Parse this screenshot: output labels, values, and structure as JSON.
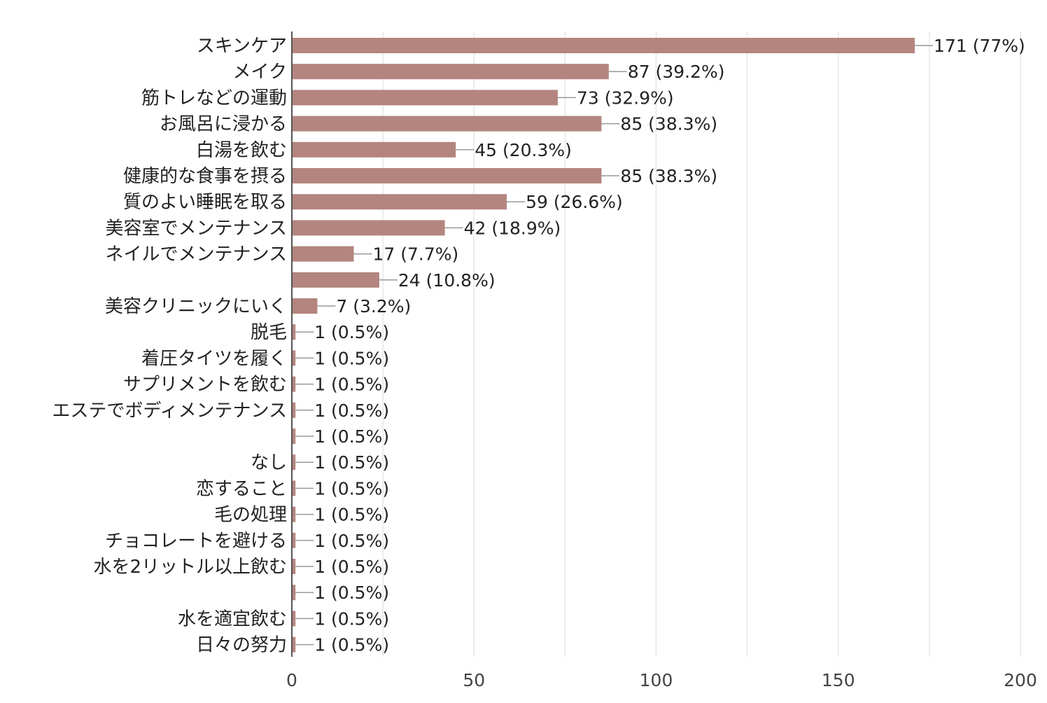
{
  "chart_data": {
    "type": "bar",
    "orientation": "horizontal",
    "categories": [
      "スキンケア",
      "メイク",
      "筋トレなどの運動",
      "お風呂に浸かる",
      "白湯を飲む",
      "健康的な食事を摂る",
      "質のよい睡眠を取る",
      "美容室でメンテナンス",
      "ネイルでメンテナンス",
      "",
      "美容クリニックにいく",
      "脱毛",
      "着圧タイツを履く",
      "サプリメントを飲む",
      "エステでボディメンテナンス",
      "",
      "なし",
      "恋すること",
      "毛の処理",
      "チョコレートを避ける",
      "水を2リットル以上飲む",
      "",
      "水を適宜飲む",
      "日々の努力"
    ],
    "values": [
      171,
      87,
      73,
      85,
      45,
      85,
      59,
      42,
      17,
      24,
      7,
      1,
      1,
      1,
      1,
      1,
      1,
      1,
      1,
      1,
      1,
      1,
      1,
      1
    ],
    "data_labels": [
      "171 (77%)",
      "87 (39.2%)",
      "73 (32.9%)",
      "85 (38.3%)",
      "45 (20.3%)",
      "85 (38.3%)",
      "59 (26.6%)",
      "42 (18.9%)",
      "17 (7.7%)",
      "24 (10.8%)",
      "7 (3.2%)",
      "1 (0.5%)",
      "1 (0.5%)",
      "1 (0.5%)",
      "1 (0.5%)",
      "1 (0.5%)",
      "1 (0.5%)",
      "1 (0.5%)",
      "1 (0.5%)",
      "1 (0.5%)",
      "1 (0.5%)",
      "1 (0.5%)",
      "1 (0.5%)",
      "1 (0.5%)"
    ],
    "xlim": [
      0,
      200
    ],
    "xticks": [
      0,
      50,
      100,
      150,
      200
    ],
    "grid": true,
    "colors": {
      "bar": "#b4857f",
      "grid": "#e6e6e6",
      "axis": "#555555",
      "leader": "#999999"
    }
  }
}
